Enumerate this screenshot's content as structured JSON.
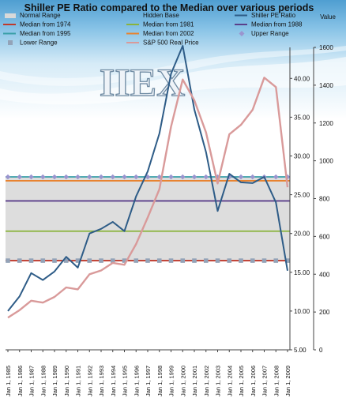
{
  "chart_data": {
    "type": "line",
    "title": "Shiller PE Ratio compared to the Median over various periods",
    "x": [
      "Jan 1, 1985",
      "Jan 1, 1986",
      "Jan 1, 1987",
      "Jan 1, 1988",
      "Jan 1, 1989",
      "Jan 1, 1990",
      "Jan 1, 1991",
      "Jan 1, 1992",
      "Jan 1, 1993",
      "Jan 1, 1994",
      "Jan 1, 1995",
      "Jan 1, 1996",
      "Jan 1, 1997",
      "Jan 1, 1998",
      "Jan 1, 1999",
      "Jan 1, 2000",
      "Jan 1, 2001",
      "Jan 1, 2002",
      "Jan 1, 2003",
      "Jan 1, 2004",
      "Jan 1, 2005",
      "Jan 1, 2006",
      "Jan 1, 2007",
      "Jan 1, 2008",
      "Jan 1, 2009"
    ],
    "y_left": {
      "ticks": [
        "5.00",
        "10.00",
        "15.00",
        "20.00",
        "25.00",
        "30.00",
        "35.00",
        "40.00"
      ],
      "range": [
        5,
        44
      ]
    },
    "y_right": {
      "label": "Value",
      "ticks": [
        "0",
        "200",
        "400",
        "600",
        "800",
        "1000",
        "1200",
        "1400",
        "1600"
      ],
      "range": [
        0,
        1600
      ]
    },
    "normal_range": {
      "lower": 16.5,
      "upper": 27.3,
      "color": "#d9d9d9"
    },
    "series": [
      {
        "name": "Shiller PE Ratio",
        "axis": "left",
        "color": "#2e5c87",
        "values": [
          10.0,
          11.9,
          14.9,
          14.0,
          15.1,
          17.0,
          15.6,
          20.0,
          20.6,
          21.5,
          20.3,
          24.8,
          28.0,
          32.9,
          40.6,
          44.2,
          36.0,
          30.5,
          22.9,
          27.7,
          26.6,
          26.5,
          27.3,
          24.0,
          15.2
        ]
      },
      {
        "name": "S&P 500 Real Price",
        "axis": "right",
        "color": "#d99a9a",
        "values": [
          170,
          210,
          260,
          250,
          280,
          330,
          320,
          400,
          420,
          460,
          450,
          560,
          700,
          850,
          1180,
          1430,
          1320,
          1150,
          880,
          1140,
          1190,
          1270,
          1440,
          1390,
          860
        ]
      },
      {
        "name": "Median from 1974",
        "axis": "left",
        "color": "#c0392b",
        "constant": 16.5
      },
      {
        "name": "Median from 1981",
        "axis": "left",
        "color": "#8ab33c",
        "constant": 20.3
      },
      {
        "name": "Median from 1988",
        "axis": "left",
        "color": "#5a3f8a",
        "constant": 24.2
      },
      {
        "name": "Median from 1995",
        "axis": "left",
        "color": "#3a9fa8",
        "constant": 27.3
      },
      {
        "name": "Median from 2002",
        "axis": "left",
        "color": "#e8822e",
        "constant": 26.8
      },
      {
        "name": "Upper Range",
        "axis": "left",
        "color": "#9a95cf",
        "marker": "diamond",
        "constant": 27.3
      },
      {
        "name": "Lower Range",
        "axis": "left",
        "color": "#93a3b8",
        "marker": "square",
        "constant": 16.5
      }
    ],
    "legend": {
      "placement": "top",
      "items": [
        {
          "label": "Normal Range",
          "kind": "box",
          "color": "#d9d9d9"
        },
        {
          "label": "Hidden Base",
          "kind": "none",
          "color": ""
        },
        {
          "label": "Shiller PE Ratio",
          "kind": "line",
          "color": "#2e5c87"
        },
        {
          "label": "Median from 1974",
          "kind": "line",
          "color": "#c0392b"
        },
        {
          "label": "Median from 1981",
          "kind": "line",
          "color": "#8ab33c"
        },
        {
          "label": "Median from 1988",
          "kind": "line",
          "color": "#5a3f8a"
        },
        {
          "label": "Median from 1995",
          "kind": "line",
          "color": "#3a9fa8"
        },
        {
          "label": "Median from 2002",
          "kind": "line",
          "color": "#e8822e"
        },
        {
          "label": "Upper Range",
          "kind": "diamond",
          "color": "#9a95cf"
        },
        {
          "label": "Lower Range",
          "kind": "square",
          "color": "#93a3b8"
        },
        {
          "label": "S&P 500 Real Price",
          "kind": "line",
          "color": "#d99a9a"
        }
      ]
    },
    "watermark": "IIEX",
    "grid": false
  }
}
